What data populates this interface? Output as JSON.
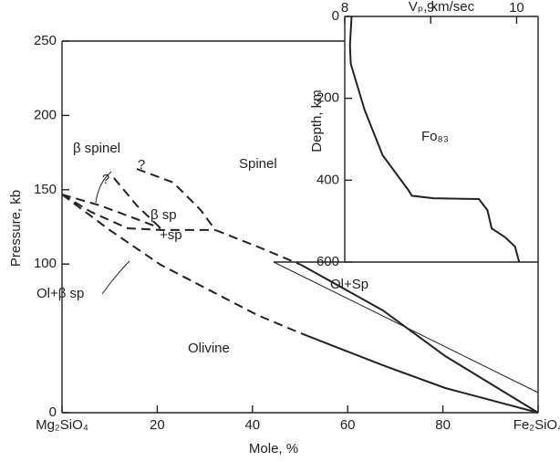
{
  "chart_data": [
    {
      "type": "line",
      "xlabel": "Mole, %",
      "ylabel": "Pressure, kb",
      "xlim": [
        0,
        100
      ],
      "ylim": [
        0,
        250
      ],
      "xticks": [
        {
          "value": 0,
          "label": "Mg₂SiO₄"
        },
        20,
        40,
        60,
        80,
        {
          "value": 100,
          "label": "Fe₂SiO₄"
        }
      ],
      "yticks": [
        0,
        100,
        150,
        200,
        250
      ],
      "color": "#222",
      "series": [
        {
          "x": [
            0,
            8.0,
            15.7,
            20.7
          ],
          "values": [
            146.8,
            139.4,
            130.2,
            124.1
          ],
          "dash": true
        },
        {
          "x": [
            0,
            6.1,
            13.8,
            20.7,
            32.2
          ],
          "values": [
            146.8,
            135.1,
            124.1,
            122.9,
            122.9
          ],
          "dash": true
        },
        {
          "x": [
            0,
            10.0,
            20.7,
            41.0,
            50.2
          ],
          "values": [
            146.8,
            122.9,
            99.5,
            65.7,
            53.4
          ],
          "dash": true
        },
        {
          "x": [
            50.2,
            67.4,
            80.5,
            100
          ],
          "values": [
            53.4,
            31.9,
            16.6,
            0
          ],
          "dash": false
        },
        {
          "x": [
            32.2,
            41.0,
            50.2
          ],
          "values": [
            122.9,
            111.8,
            99.5
          ],
          "dash": true
        },
        {
          "x": [
            50.2,
            67.4,
            80.5,
            100
          ],
          "values": [
            99.5,
            68.8,
            38.1,
            0
          ],
          "dash": false
        },
        {
          "x": [
            15.7,
            23.4,
            29.1,
            32.2
          ],
          "values": [
            164.0,
            154.8,
            136.4,
            122.9
          ],
          "dash": true
        },
        {
          "x": [
            10.9,
            15.7,
            20.7
          ],
          "values": [
            157.9,
            139.4,
            124.1
          ],
          "dash": true
        }
      ],
      "annotations": [
        "Spinel",
        "β  spinel",
        "β  sp",
        "+sp",
        "Ol+β  sp",
        "Ol+Sp",
        "Olivine",
        "?",
        "?"
      ]
    },
    {
      "type": "line",
      "xlabel": "Vₚ,  km/sec",
      "ylabel": "Depth,  km",
      "xlim": [
        8,
        10.25
      ],
      "ylim": [
        0,
        600
      ],
      "y_inverted": true,
      "xticks": [
        8,
        9,
        10
      ],
      "yticks": [
        0,
        200,
        400,
        600
      ],
      "color": "#222",
      "series": [
        {
          "x": [
            8.08,
            8.06,
            8.07,
            8.23,
            8.44,
            8.74,
            8.78,
            9.03,
            9.56,
            9.66,
            9.71,
            9.87,
            9.98,
            10.03
          ],
          "values": [
            0,
            71,
            116,
            228,
            339,
            424,
            438,
            444,
            446,
            473,
            518,
            540,
            562,
            600
          ],
          "dash": false
        }
      ],
      "annotations": [
        "Fo₈₃"
      ]
    }
  ]
}
